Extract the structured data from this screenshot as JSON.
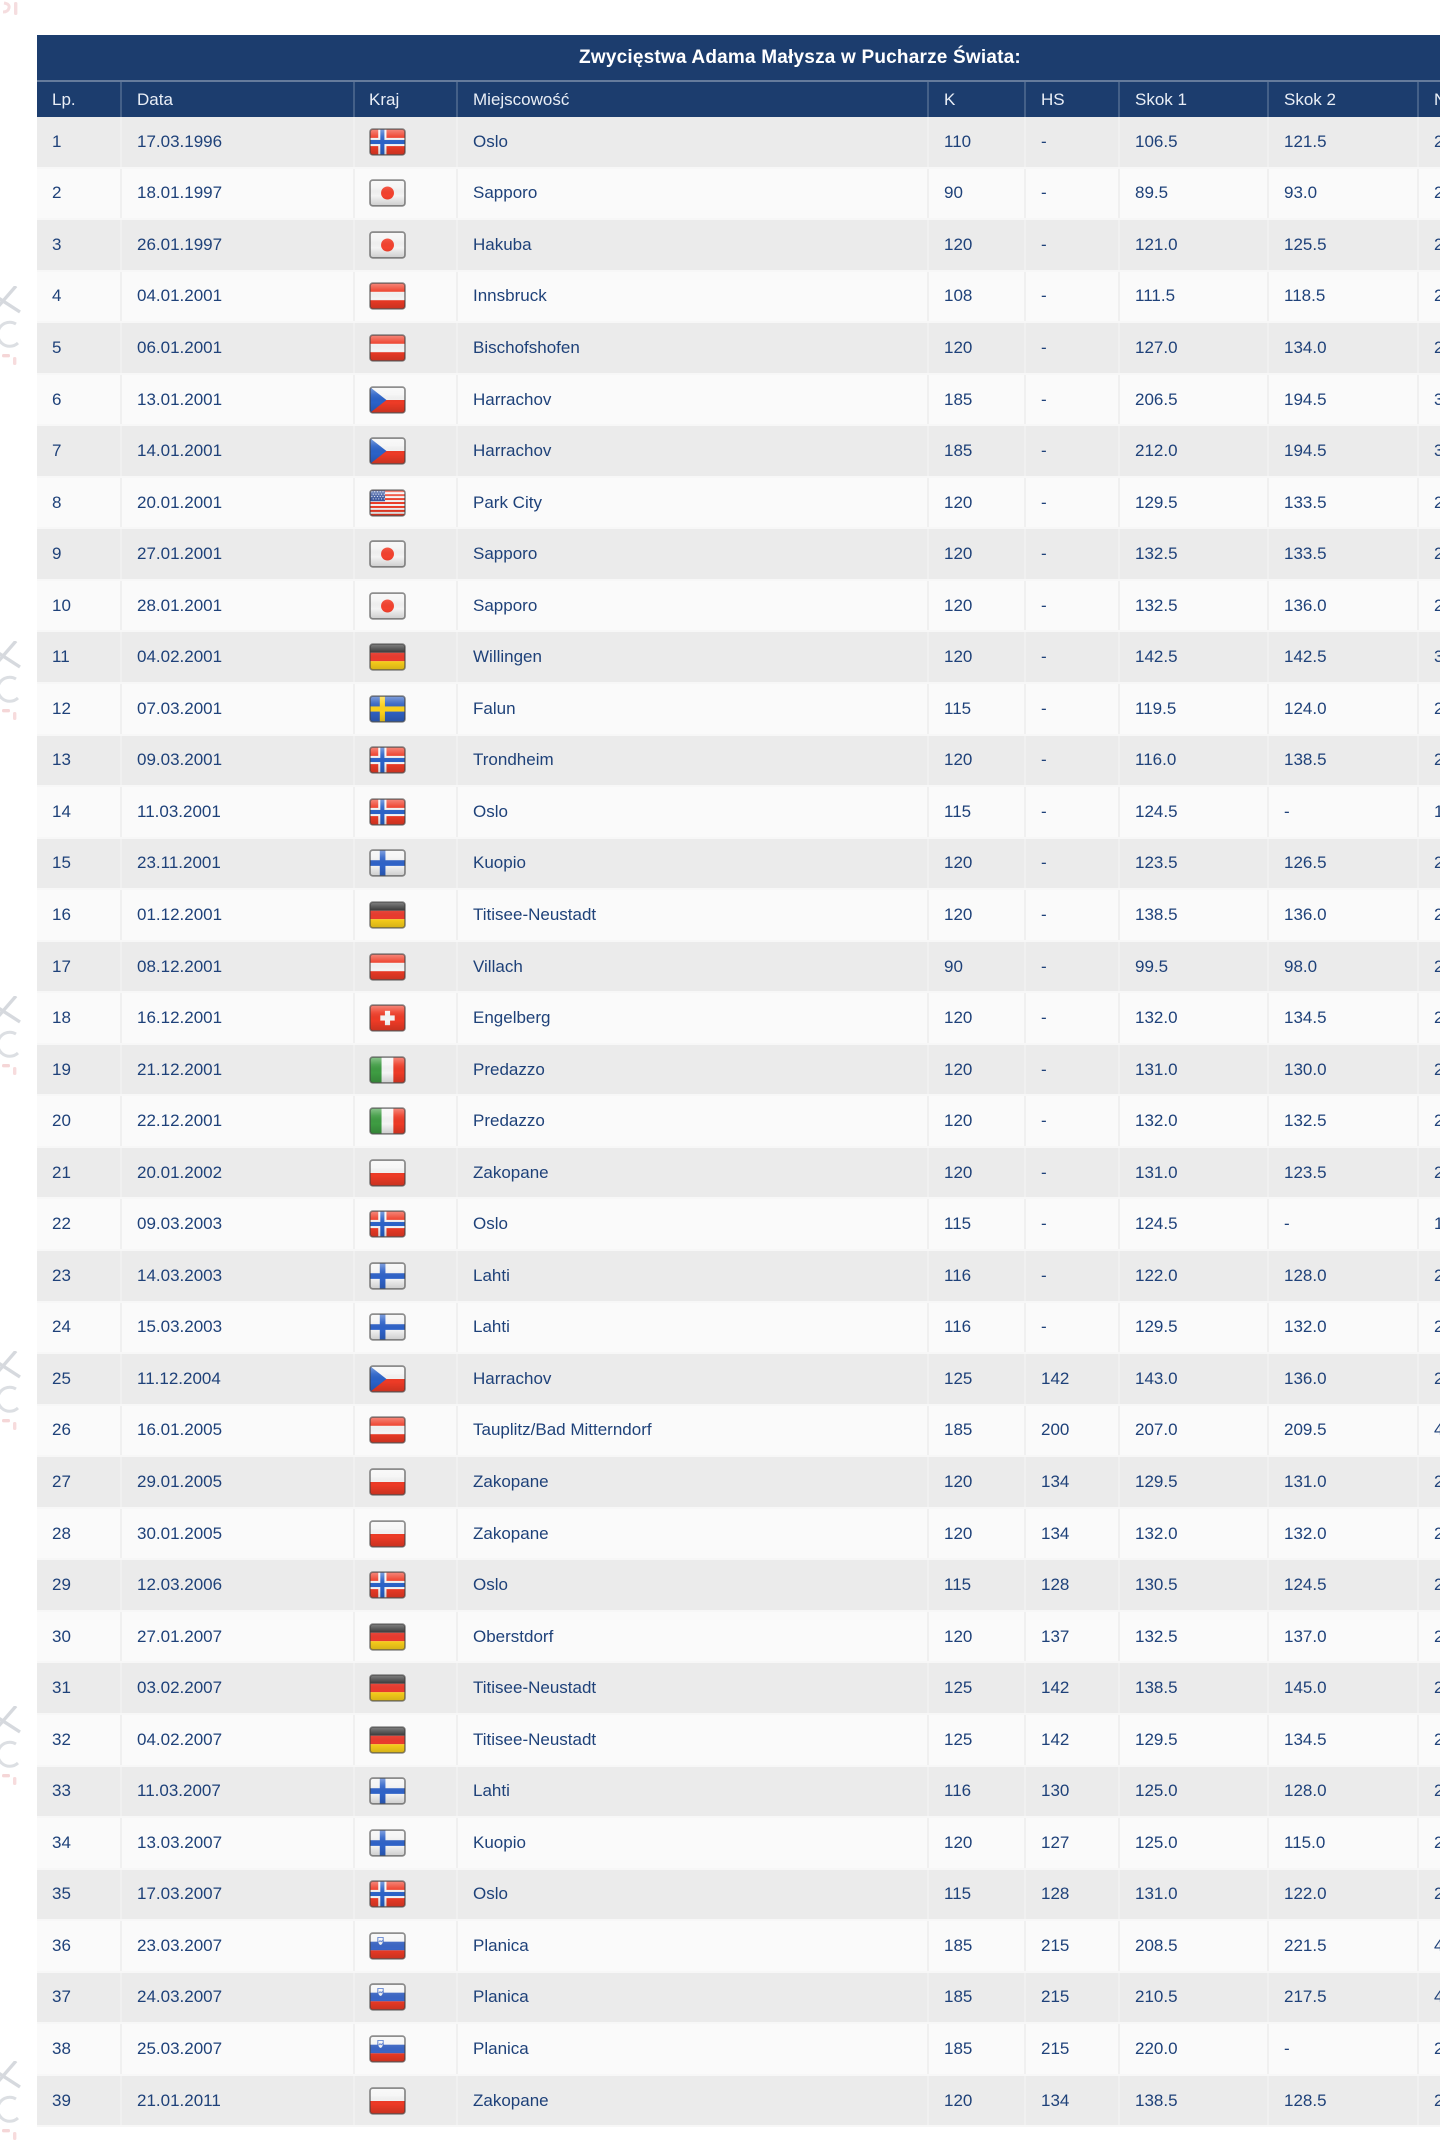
{
  "colors": {
    "header_bg": "#1c3d6e",
    "header_text": "#ffffff",
    "cell_text": "#1e4179",
    "row_odd_bg": "#ebebeb",
    "row_even_bg": "#fafafa"
  },
  "table": {
    "title": "Zwycięstwa Adama Małysza w Pucharze Świata:",
    "columns": [
      "Lp.",
      "Data",
      "Kraj",
      "Miejscowość",
      "K",
      "HS",
      "Skok 1",
      "Skok 2",
      "N"
    ],
    "rows": [
      {
        "lp": "1",
        "date": "17.03.1996",
        "flag": "norway",
        "place": "Oslo",
        "k": "110",
        "hs": "-",
        "jump1": "106.5",
        "jump2": "121.5",
        "total_visible": "2"
      },
      {
        "lp": "2",
        "date": "18.01.1997",
        "flag": "japan",
        "place": "Sapporo",
        "k": "90",
        "hs": "-",
        "jump1": "89.5",
        "jump2": "93.0",
        "total_visible": "2"
      },
      {
        "lp": "3",
        "date": "26.01.1997",
        "flag": "japan",
        "place": "Hakuba",
        "k": "120",
        "hs": "-",
        "jump1": "121.0",
        "jump2": "125.5",
        "total_visible": "2"
      },
      {
        "lp": "4",
        "date": "04.01.2001",
        "flag": "austria",
        "place": "Innsbruck",
        "k": "108",
        "hs": "-",
        "jump1": "111.5",
        "jump2": "118.5",
        "total_visible": "2"
      },
      {
        "lp": "5",
        "date": "06.01.2001",
        "flag": "austria",
        "place": "Bischofshofen",
        "k": "120",
        "hs": "-",
        "jump1": "127.0",
        "jump2": "134.0",
        "total_visible": "2"
      },
      {
        "lp": "6",
        "date": "13.01.2001",
        "flag": "czechia",
        "place": "Harrachov",
        "k": "185",
        "hs": "-",
        "jump1": "206.5",
        "jump2": "194.5",
        "total_visible": "3"
      },
      {
        "lp": "7",
        "date": "14.01.2001",
        "flag": "czechia",
        "place": "Harrachov",
        "k": "185",
        "hs": "-",
        "jump1": "212.0",
        "jump2": "194.5",
        "total_visible": "3"
      },
      {
        "lp": "8",
        "date": "20.01.2001",
        "flag": "usa",
        "place": "Park City",
        "k": "120",
        "hs": "-",
        "jump1": "129.5",
        "jump2": "133.5",
        "total_visible": "2"
      },
      {
        "lp": "9",
        "date": "27.01.2001",
        "flag": "japan",
        "place": "Sapporo",
        "k": "120",
        "hs": "-",
        "jump1": "132.5",
        "jump2": "133.5",
        "total_visible": "2"
      },
      {
        "lp": "10",
        "date": "28.01.2001",
        "flag": "japan",
        "place": "Sapporo",
        "k": "120",
        "hs": "-",
        "jump1": "132.5",
        "jump2": "136.0",
        "total_visible": "2"
      },
      {
        "lp": "11",
        "date": "04.02.2001",
        "flag": "germany",
        "place": "Willingen",
        "k": "120",
        "hs": "-",
        "jump1": "142.5",
        "jump2": "142.5",
        "total_visible": "3"
      },
      {
        "lp": "12",
        "date": "07.03.2001",
        "flag": "sweden",
        "place": "Falun",
        "k": "115",
        "hs": "-",
        "jump1": "119.5",
        "jump2": "124.0",
        "total_visible": "2"
      },
      {
        "lp": "13",
        "date": "09.03.2001",
        "flag": "norway",
        "place": "Trondheim",
        "k": "120",
        "hs": "-",
        "jump1": "116.0",
        "jump2": "138.5",
        "total_visible": "2"
      },
      {
        "lp": "14",
        "date": "11.03.2001",
        "flag": "norway",
        "place": "Oslo",
        "k": "115",
        "hs": "-",
        "jump1": "124.5",
        "jump2": "-",
        "total_visible": "1"
      },
      {
        "lp": "15",
        "date": "23.11.2001",
        "flag": "finland",
        "place": "Kuopio",
        "k": "120",
        "hs": "-",
        "jump1": "123.5",
        "jump2": "126.5",
        "total_visible": "2"
      },
      {
        "lp": "16",
        "date": "01.12.2001",
        "flag": "germany",
        "place": "Titisee-Neustadt",
        "k": "120",
        "hs": "-",
        "jump1": "138.5",
        "jump2": "136.0",
        "total_visible": "2"
      },
      {
        "lp": "17",
        "date": "08.12.2001",
        "flag": "austria",
        "place": "Villach",
        "k": "90",
        "hs": "-",
        "jump1": "99.5",
        "jump2": "98.0",
        "total_visible": "2"
      },
      {
        "lp": "18",
        "date": "16.12.2001",
        "flag": "switzerland",
        "place": "Engelberg",
        "k": "120",
        "hs": "-",
        "jump1": "132.0",
        "jump2": "134.5",
        "total_visible": "2"
      },
      {
        "lp": "19",
        "date": "21.12.2001",
        "flag": "italy",
        "place": "Predazzo",
        "k": "120",
        "hs": "-",
        "jump1": "131.0",
        "jump2": "130.0",
        "total_visible": "2"
      },
      {
        "lp": "20",
        "date": "22.12.2001",
        "flag": "italy",
        "place": "Predazzo",
        "k": "120",
        "hs": "-",
        "jump1": "132.0",
        "jump2": "132.5",
        "total_visible": "2"
      },
      {
        "lp": "21",
        "date": "20.01.2002",
        "flag": "poland",
        "place": "Zakopane",
        "k": "120",
        "hs": "-",
        "jump1": "131.0",
        "jump2": "123.5",
        "total_visible": "2"
      },
      {
        "lp": "22",
        "date": "09.03.2003",
        "flag": "norway",
        "place": "Oslo",
        "k": "115",
        "hs": "-",
        "jump1": "124.5",
        "jump2": "-",
        "total_visible": "1"
      },
      {
        "lp": "23",
        "date": "14.03.2003",
        "flag": "finland",
        "place": "Lahti",
        "k": "116",
        "hs": "-",
        "jump1": "122.0",
        "jump2": "128.0",
        "total_visible": "2"
      },
      {
        "lp": "24",
        "date": "15.03.2003",
        "flag": "finland",
        "place": "Lahti",
        "k": "116",
        "hs": "-",
        "jump1": "129.5",
        "jump2": "132.0",
        "total_visible": "2"
      },
      {
        "lp": "25",
        "date": "11.12.2004",
        "flag": "czechia",
        "place": "Harrachov",
        "k": "125",
        "hs": "142",
        "jump1": "143.0",
        "jump2": "136.0",
        "total_visible": "2"
      },
      {
        "lp": "26",
        "date": "16.01.2005",
        "flag": "austria",
        "place": "Tauplitz/Bad Mitterndorf",
        "k": "185",
        "hs": "200",
        "jump1": "207.0",
        "jump2": "209.5",
        "total_visible": "4"
      },
      {
        "lp": "27",
        "date": "29.01.2005",
        "flag": "poland",
        "place": "Zakopane",
        "k": "120",
        "hs": "134",
        "jump1": "129.5",
        "jump2": "131.0",
        "total_visible": "2"
      },
      {
        "lp": "28",
        "date": "30.01.2005",
        "flag": "poland",
        "place": "Zakopane",
        "k": "120",
        "hs": "134",
        "jump1": "132.0",
        "jump2": "132.0",
        "total_visible": "2"
      },
      {
        "lp": "29",
        "date": "12.03.2006",
        "flag": "norway",
        "place": "Oslo",
        "k": "115",
        "hs": "128",
        "jump1": "130.5",
        "jump2": "124.5",
        "total_visible": "2"
      },
      {
        "lp": "30",
        "date": "27.01.2007",
        "flag": "germany",
        "place": "Oberstdorf",
        "k": "120",
        "hs": "137",
        "jump1": "132.5",
        "jump2": "137.0",
        "total_visible": "2"
      },
      {
        "lp": "31",
        "date": "03.02.2007",
        "flag": "germany",
        "place": "Titisee-Neustadt",
        "k": "125",
        "hs": "142",
        "jump1": "138.5",
        "jump2": "145.0",
        "total_visible": "2"
      },
      {
        "lp": "32",
        "date": "04.02.2007",
        "flag": "germany",
        "place": "Titisee-Neustadt",
        "k": "125",
        "hs": "142",
        "jump1": "129.5",
        "jump2": "134.5",
        "total_visible": "2"
      },
      {
        "lp": "33",
        "date": "11.03.2007",
        "flag": "finland",
        "place": "Lahti",
        "k": "116",
        "hs": "130",
        "jump1": "125.0",
        "jump2": "128.0",
        "total_visible": "2"
      },
      {
        "lp": "34",
        "date": "13.03.2007",
        "flag": "finland",
        "place": "Kuopio",
        "k": "120",
        "hs": "127",
        "jump1": "125.0",
        "jump2": "115.0",
        "total_visible": "2"
      },
      {
        "lp": "35",
        "date": "17.03.2007",
        "flag": "norway",
        "place": "Oslo",
        "k": "115",
        "hs": "128",
        "jump1": "131.0",
        "jump2": "122.0",
        "total_visible": "2"
      },
      {
        "lp": "36",
        "date": "23.03.2007",
        "flag": "slovenia",
        "place": "Planica",
        "k": "185",
        "hs": "215",
        "jump1": "208.5",
        "jump2": "221.5",
        "total_visible": "4"
      },
      {
        "lp": "37",
        "date": "24.03.2007",
        "flag": "slovenia",
        "place": "Planica",
        "k": "185",
        "hs": "215",
        "jump1": "210.5",
        "jump2": "217.5",
        "total_visible": "4"
      },
      {
        "lp": "38",
        "date": "25.03.2007",
        "flag": "slovenia",
        "place": "Planica",
        "k": "185",
        "hs": "215",
        "jump1": "220.0",
        "jump2": "-",
        "total_visible": "2"
      },
      {
        "lp": "39",
        "date": "21.01.2011",
        "flag": "poland",
        "place": "Zakopane",
        "k": "120",
        "hs": "134",
        "jump1": "138.5",
        "jump2": "128.5",
        "total_visible": "2"
      }
    ]
  }
}
